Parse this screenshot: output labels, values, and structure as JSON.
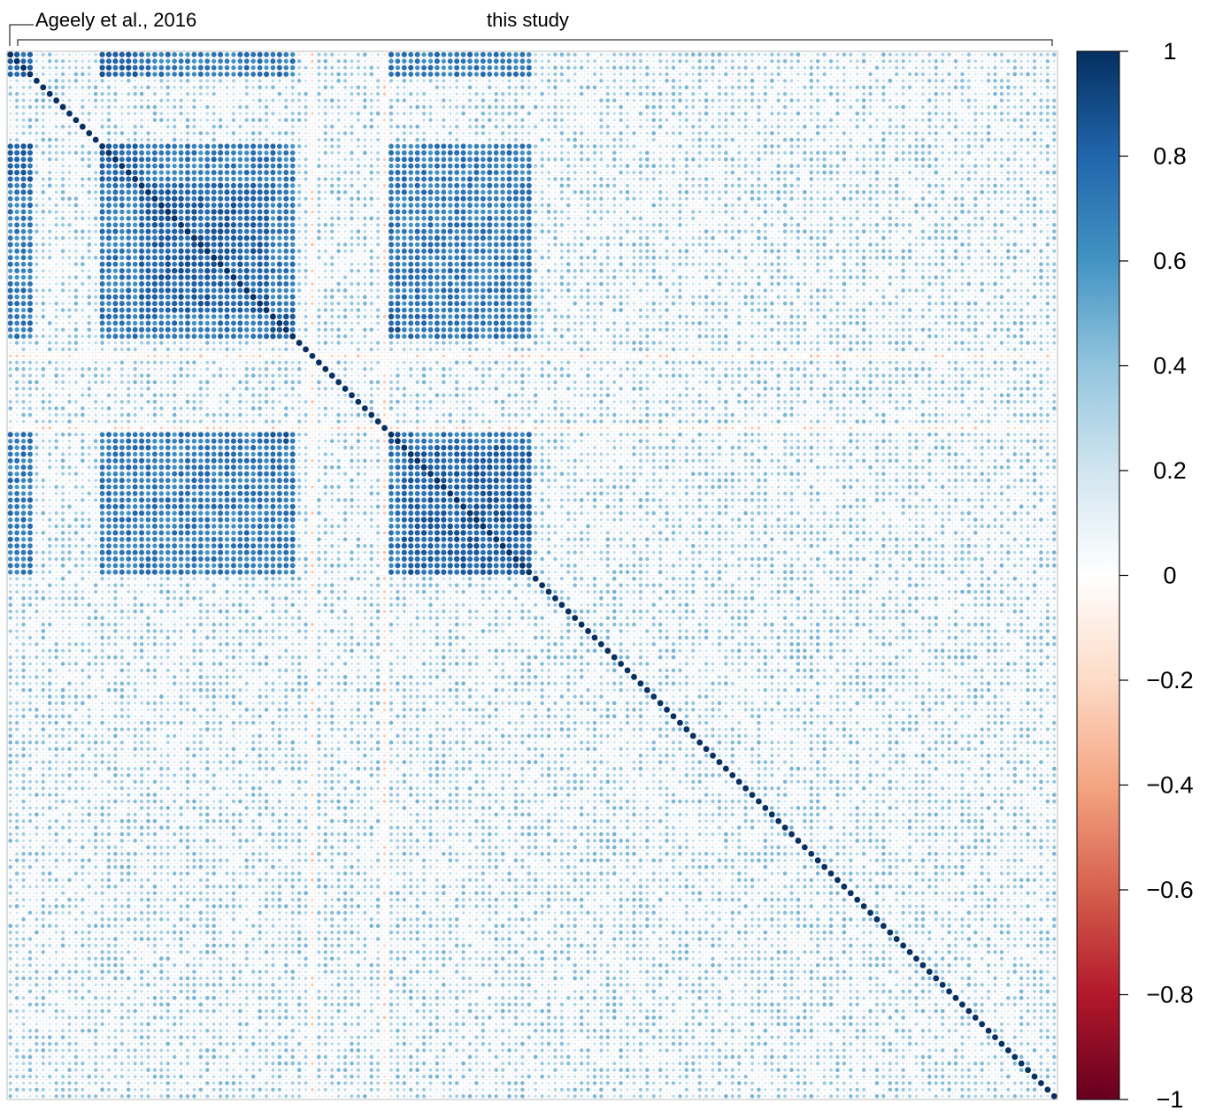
{
  "chart_data": {
    "type": "heatmap",
    "subtype": "correlation-matrix (circle glyphs)",
    "matrix_size": 160,
    "value_range": [
      -1,
      1
    ],
    "group_annotations": [
      {
        "label": "Ageely et al., 2016",
        "start_index": 0,
        "end_index": 1
      },
      {
        "label": "this study",
        "start_index": 1,
        "end_index": 159
      }
    ],
    "colorbar": {
      "ticks": [
        1,
        0.8,
        0.6,
        0.4,
        0.2,
        0,
        -0.2,
        -0.4,
        -0.6,
        -0.8,
        -1
      ],
      "tick_labels": [
        "1",
        "0.8",
        "0.6",
        "0.4",
        "0.2",
        "0",
        "−0.2",
        "−0.4",
        "−0.6",
        "−0.8",
        "−1"
      ],
      "colors_high_to_low": [
        "#053061",
        "#2166ac",
        "#4393c3",
        "#92c5de",
        "#d1e5f0",
        "#ffffff",
        "#fddbc7",
        "#f4a582",
        "#d6604d",
        "#b2182b",
        "#67001f"
      ]
    },
    "diagonal_value": 1,
    "block_structure": {
      "low_correlation_indices": [
        4,
        5,
        6,
        7,
        8,
        9,
        10,
        11,
        12,
        13,
        44,
        45,
        46,
        47,
        48,
        49,
        50,
        51,
        52,
        53,
        54,
        55,
        56,
        57,
        80,
        81,
        82,
        83,
        84,
        85,
        86,
        87,
        88,
        89,
        90,
        91,
        92,
        93,
        94,
        95,
        96,
        97,
        98,
        99,
        100,
        101,
        102,
        103,
        104,
        105,
        106,
        107,
        108,
        109,
        110,
        111,
        112,
        113,
        114,
        115,
        116,
        117,
        118,
        119,
        120,
        121,
        122,
        123,
        124,
        125,
        126,
        127,
        128,
        129,
        130,
        131,
        132,
        133,
        134,
        135,
        136,
        137,
        138,
        139,
        140,
        141,
        142,
        143,
        144,
        145,
        146,
        147,
        148,
        149,
        150,
        151,
        152,
        153,
        154,
        155,
        156,
        157,
        158,
        159
      ],
      "negative_indices": [
        46,
        57
      ],
      "typical_within_block": 0.8,
      "typical_between_block": 0.7,
      "typical_low_rows": 0.3
    }
  }
}
